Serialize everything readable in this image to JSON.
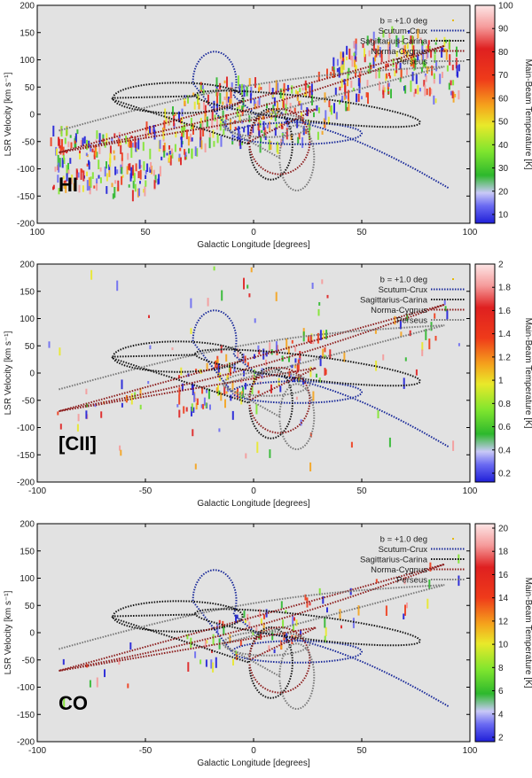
{
  "chart_data": [
    {
      "type": "scatter",
      "panel_label": "HI",
      "xlabel": "Galactic Longitude [degrees]",
      "ylabel": "LSR Velocity [km s⁻¹]",
      "xlim": [
        100,
        -100
      ],
      "ylim": [
        -200,
        200
      ],
      "x_ticks": [
        "100",
        "50",
        "0",
        "50",
        "100"
      ],
      "y_ticks": [
        "200",
        "150",
        "100",
        "50",
        "0",
        "-50",
        "-100",
        "-150",
        "-200"
      ],
      "colorbar": {
        "label": "Main-Beam Temperature [K]",
        "min": 10,
        "max": 100,
        "ticks": [
          "100",
          "90",
          "80",
          "70",
          "60",
          "50",
          "40",
          "30",
          "20",
          "10"
        ]
      },
      "legend": [
        "b = +1.0 deg",
        "Scutum-Crux",
        "Sagittarius-Carina",
        "Norma-Cygnus",
        "Perseus"
      ]
    },
    {
      "type": "scatter",
      "panel_label": "[CII]",
      "xlabel": "Galactic Longitude [degrees]",
      "ylabel": "LSR Velocity [km s⁻¹]",
      "xlim": [
        100,
        -100
      ],
      "ylim": [
        -200,
        200
      ],
      "x_ticks": [
        "-100",
        "-50",
        "0",
        "50",
        "100"
      ],
      "y_ticks": [
        "200",
        "150",
        "100",
        "50",
        "0",
        "-50",
        "-100",
        "-150",
        "-200"
      ],
      "colorbar": {
        "label": "Main-Beam Temperature [K]",
        "min": 0.2,
        "max": 2,
        "ticks": [
          "2",
          "1.8",
          "1.6",
          "1.4",
          "1.2",
          "1",
          "0.8",
          "0.6",
          "0.4",
          "0.2"
        ]
      },
      "legend": [
        "b = +1.0 deg",
        "Scutum-Crux",
        "Sagittarius-Carina",
        "Norma-Cygnus",
        "Perseus"
      ]
    },
    {
      "type": "scatter",
      "panel_label": "CO",
      "xlabel": "Galactic Longitude [degrees]",
      "ylabel": "LSR Velocity [km s⁻¹]",
      "xlim": [
        100,
        -100
      ],
      "ylim": [
        -200,
        200
      ],
      "x_ticks": [
        "-100",
        "-50",
        "0",
        "50",
        "100"
      ],
      "y_ticks": [
        "200",
        "150",
        "100",
        "50",
        "0",
        "-50",
        "-100",
        "-150",
        "-200"
      ],
      "colorbar": {
        "label": "Main-Beam Temperature [K]",
        "min": 0,
        "max": 20,
        "ticks": [
          "20",
          "18",
          "16",
          "14",
          "12",
          "10",
          "8",
          "6",
          "4",
          "2"
        ]
      },
      "legend": [
        "b = +1.0 deg",
        "Scutum-Crux",
        "Sagittarius-Carina",
        "Norma-Cygnus",
        "Perseus"
      ]
    }
  ],
  "arm_colors": {
    "Scutum-Crux": "#1a2a9a",
    "Sagittarius-Carina": "#111111",
    "Norma-Cygnus": "#8b1c1c",
    "Perseus": "#777777"
  },
  "data_point_color": "#e6b800",
  "plot_background": "#e2e2e2"
}
